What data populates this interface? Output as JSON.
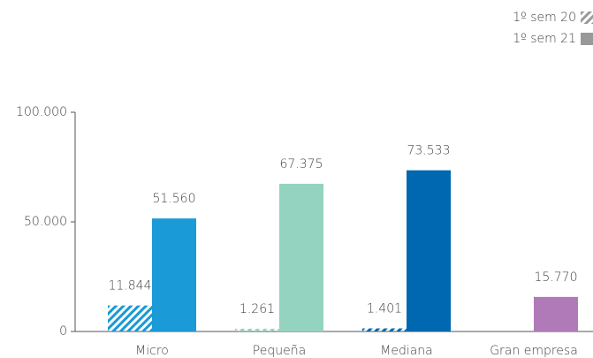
{
  "chart_data": {
    "type": "bar",
    "categories": [
      "Micro",
      "Pequeña",
      "Mediana",
      "Gran empresa"
    ],
    "colors": [
      "#1a9ad6",
      "#93d3c0",
      "#0068b0",
      "#b07ab8"
    ],
    "series": [
      {
        "name": "1º sem 20",
        "color": "#999999",
        "pattern": "hatch",
        "values": [
          11844,
          1261,
          1401,
          null
        ],
        "value_labels": [
          "11.844",
          "1.261",
          "1.401",
          null
        ]
      },
      {
        "name": "1º sem 21",
        "color": "#999999",
        "pattern": "solid",
        "values": [
          51560,
          67375,
          73533,
          15770
        ],
        "value_labels": [
          "51.560",
          "67.375",
          "73.533",
          "15.770"
        ]
      }
    ],
    "ylim": [
      0,
      100000
    ],
    "yticks": [
      {
        "value": 0,
        "label": "0"
      },
      {
        "value": 50000,
        "label": "50.000"
      },
      {
        "value": 100000,
        "label": "100.000"
      }
    ],
    "legend": "top-right"
  }
}
